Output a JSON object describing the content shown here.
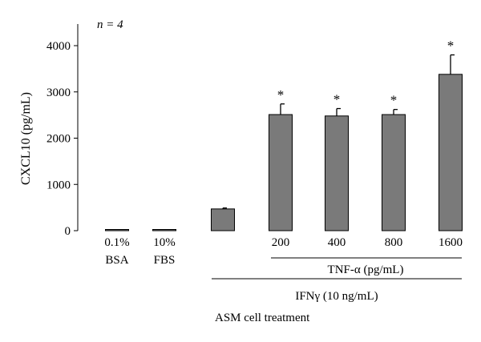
{
  "chart_data": {
    "type": "bar",
    "annotation": "n = 4",
    "ylabel": "CXCL10 (pg/mL)",
    "ylim": [
      0,
      4400
    ],
    "yticks": [
      0,
      1000,
      2000,
      3000,
      4000
    ],
    "grid": false,
    "legend": "none",
    "bar_color": "#7a7a7a",
    "categories": [
      [
        "0.1%",
        "BSA"
      ],
      [
        "10%",
        "FBS"
      ],
      [
        ""
      ],
      [
        "200"
      ],
      [
        "400"
      ],
      [
        "800"
      ],
      [
        "1600"
      ]
    ],
    "values": [
      0,
      0,
      470,
      2510,
      2480,
      2510,
      3380
    ],
    "errors": [
      0,
      0,
      20,
      230,
      160,
      110,
      420
    ],
    "significance": [
      "",
      "",
      "",
      "*",
      "*",
      "*",
      "*"
    ],
    "group_labels": {
      "tnf": "TNF-α (pg/mL)",
      "ifn": "IFNγ (10 ng/mL)",
      "treatment": "ASM cell treatment"
    }
  }
}
